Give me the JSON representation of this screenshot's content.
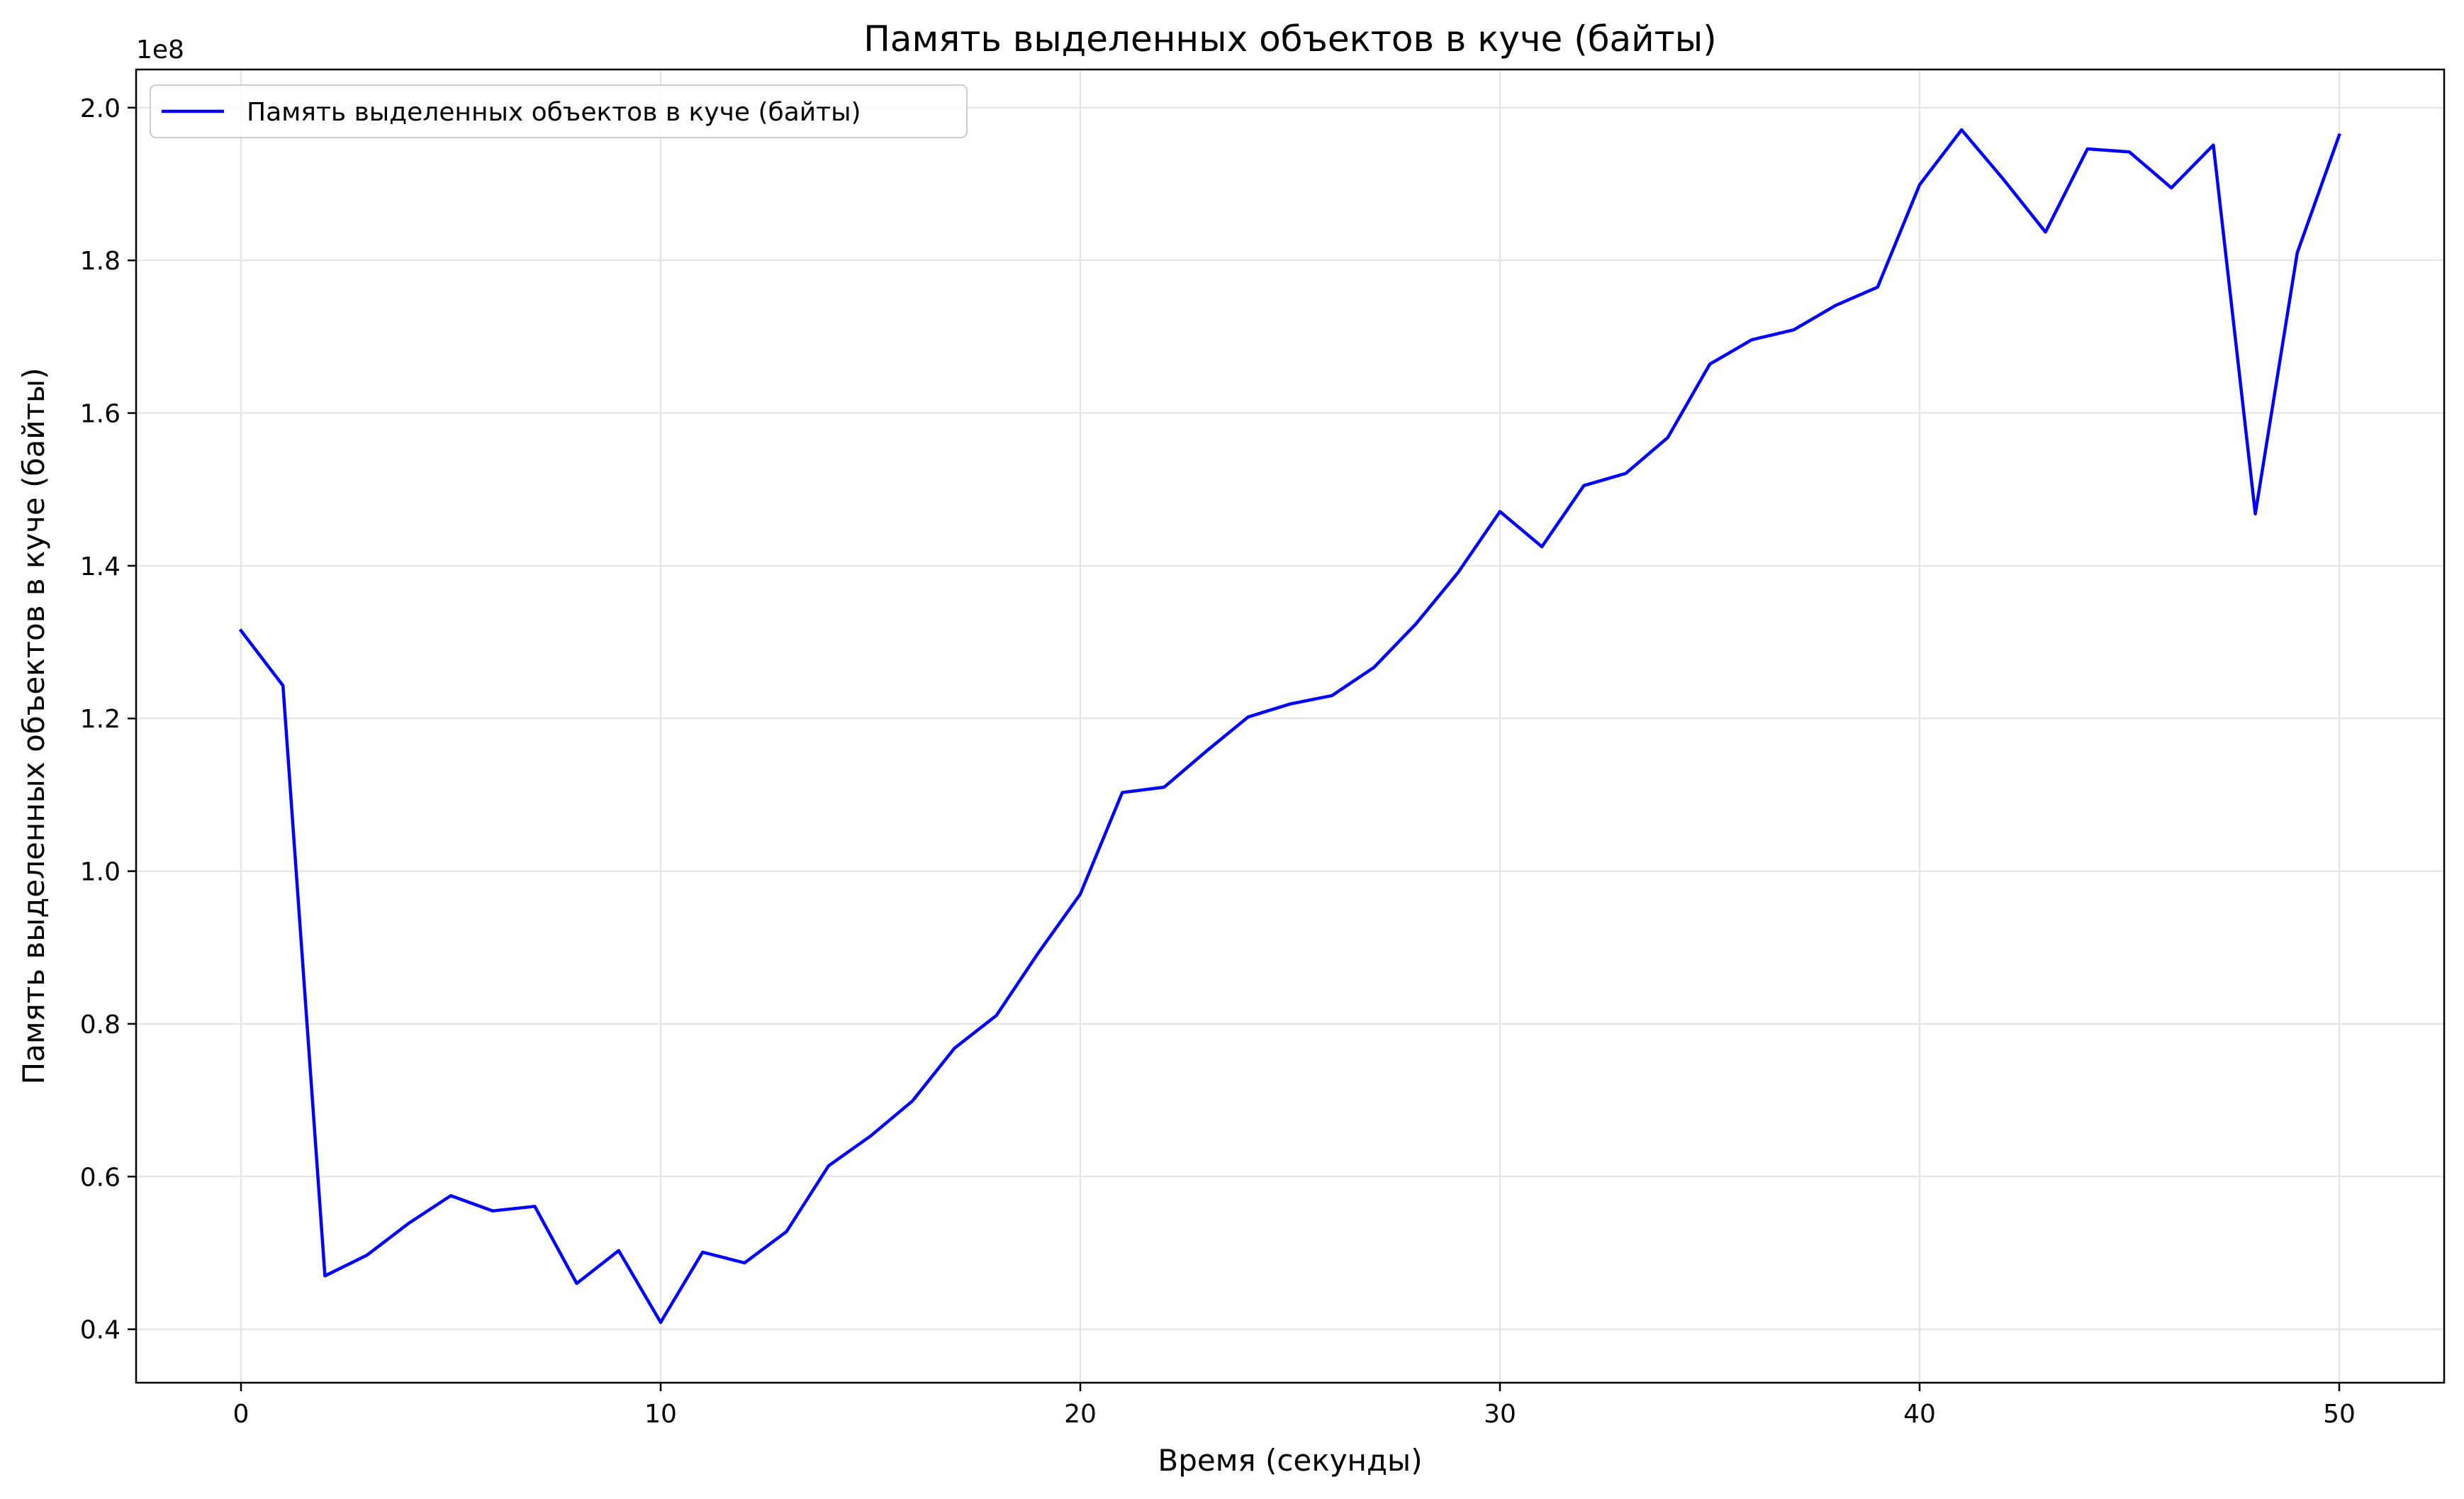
{
  "chart_data": {
    "type": "line",
    "title": "Память выделенных объектов в куче (байты)",
    "xlabel": "Время (секунды)",
    "ylabel": "Память выделенных объектов в куче (байты)",
    "y_offset_label": "1e8",
    "xlim": [
      -2.5,
      52.5
    ],
    "ylim": [
      0.33,
      2.05
    ],
    "x_ticks": [
      0,
      10,
      20,
      30,
      40,
      50
    ],
    "x_tick_labels": [
      "0",
      "10",
      "20",
      "30",
      "40",
      "50"
    ],
    "y_ticks": [
      0.4,
      0.6,
      0.8,
      1.0,
      1.2,
      1.4,
      1.6,
      1.8,
      2.0
    ],
    "y_tick_labels": [
      "0.4",
      "0.6",
      "0.8",
      "1.0",
      "1.2",
      "1.4",
      "1.6",
      "1.8",
      "2.0"
    ],
    "grid": true,
    "legend_position": "top-left",
    "series": [
      {
        "name": "Память выделенных объектов в куче (байты)",
        "color": "#0000ff",
        "x": [
          0,
          1,
          2,
          3,
          4,
          5,
          6,
          7,
          8,
          9,
          10,
          11,
          12,
          13,
          14,
          15,
          16,
          17,
          18,
          19,
          20,
          21,
          22,
          23,
          24,
          25,
          26,
          27,
          28,
          29,
          30,
          31,
          32,
          33,
          34,
          35,
          36,
          37,
          38,
          39,
          40,
          41,
          42,
          43,
          44,
          45,
          46,
          47,
          48,
          49,
          50
        ],
        "values": [
          1.315,
          1.243,
          0.47,
          0.497,
          0.539,
          0.575,
          0.555,
          0.561,
          0.46,
          0.503,
          0.409,
          0.501,
          0.487,
          0.528,
          0.614,
          0.653,
          0.699,
          0.768,
          0.811,
          0.893,
          0.97,
          1.103,
          1.11,
          1.157,
          1.202,
          1.219,
          1.23,
          1.267,
          1.324,
          1.391,
          1.471,
          1.425,
          1.505,
          1.521,
          1.568,
          1.664,
          1.696,
          1.709,
          1.741,
          1.765,
          1.899,
          1.971,
          1.906,
          1.837,
          1.946,
          1.942,
          1.895,
          1.951,
          1.468,
          1.81,
          1.964
        ]
      }
    ]
  }
}
